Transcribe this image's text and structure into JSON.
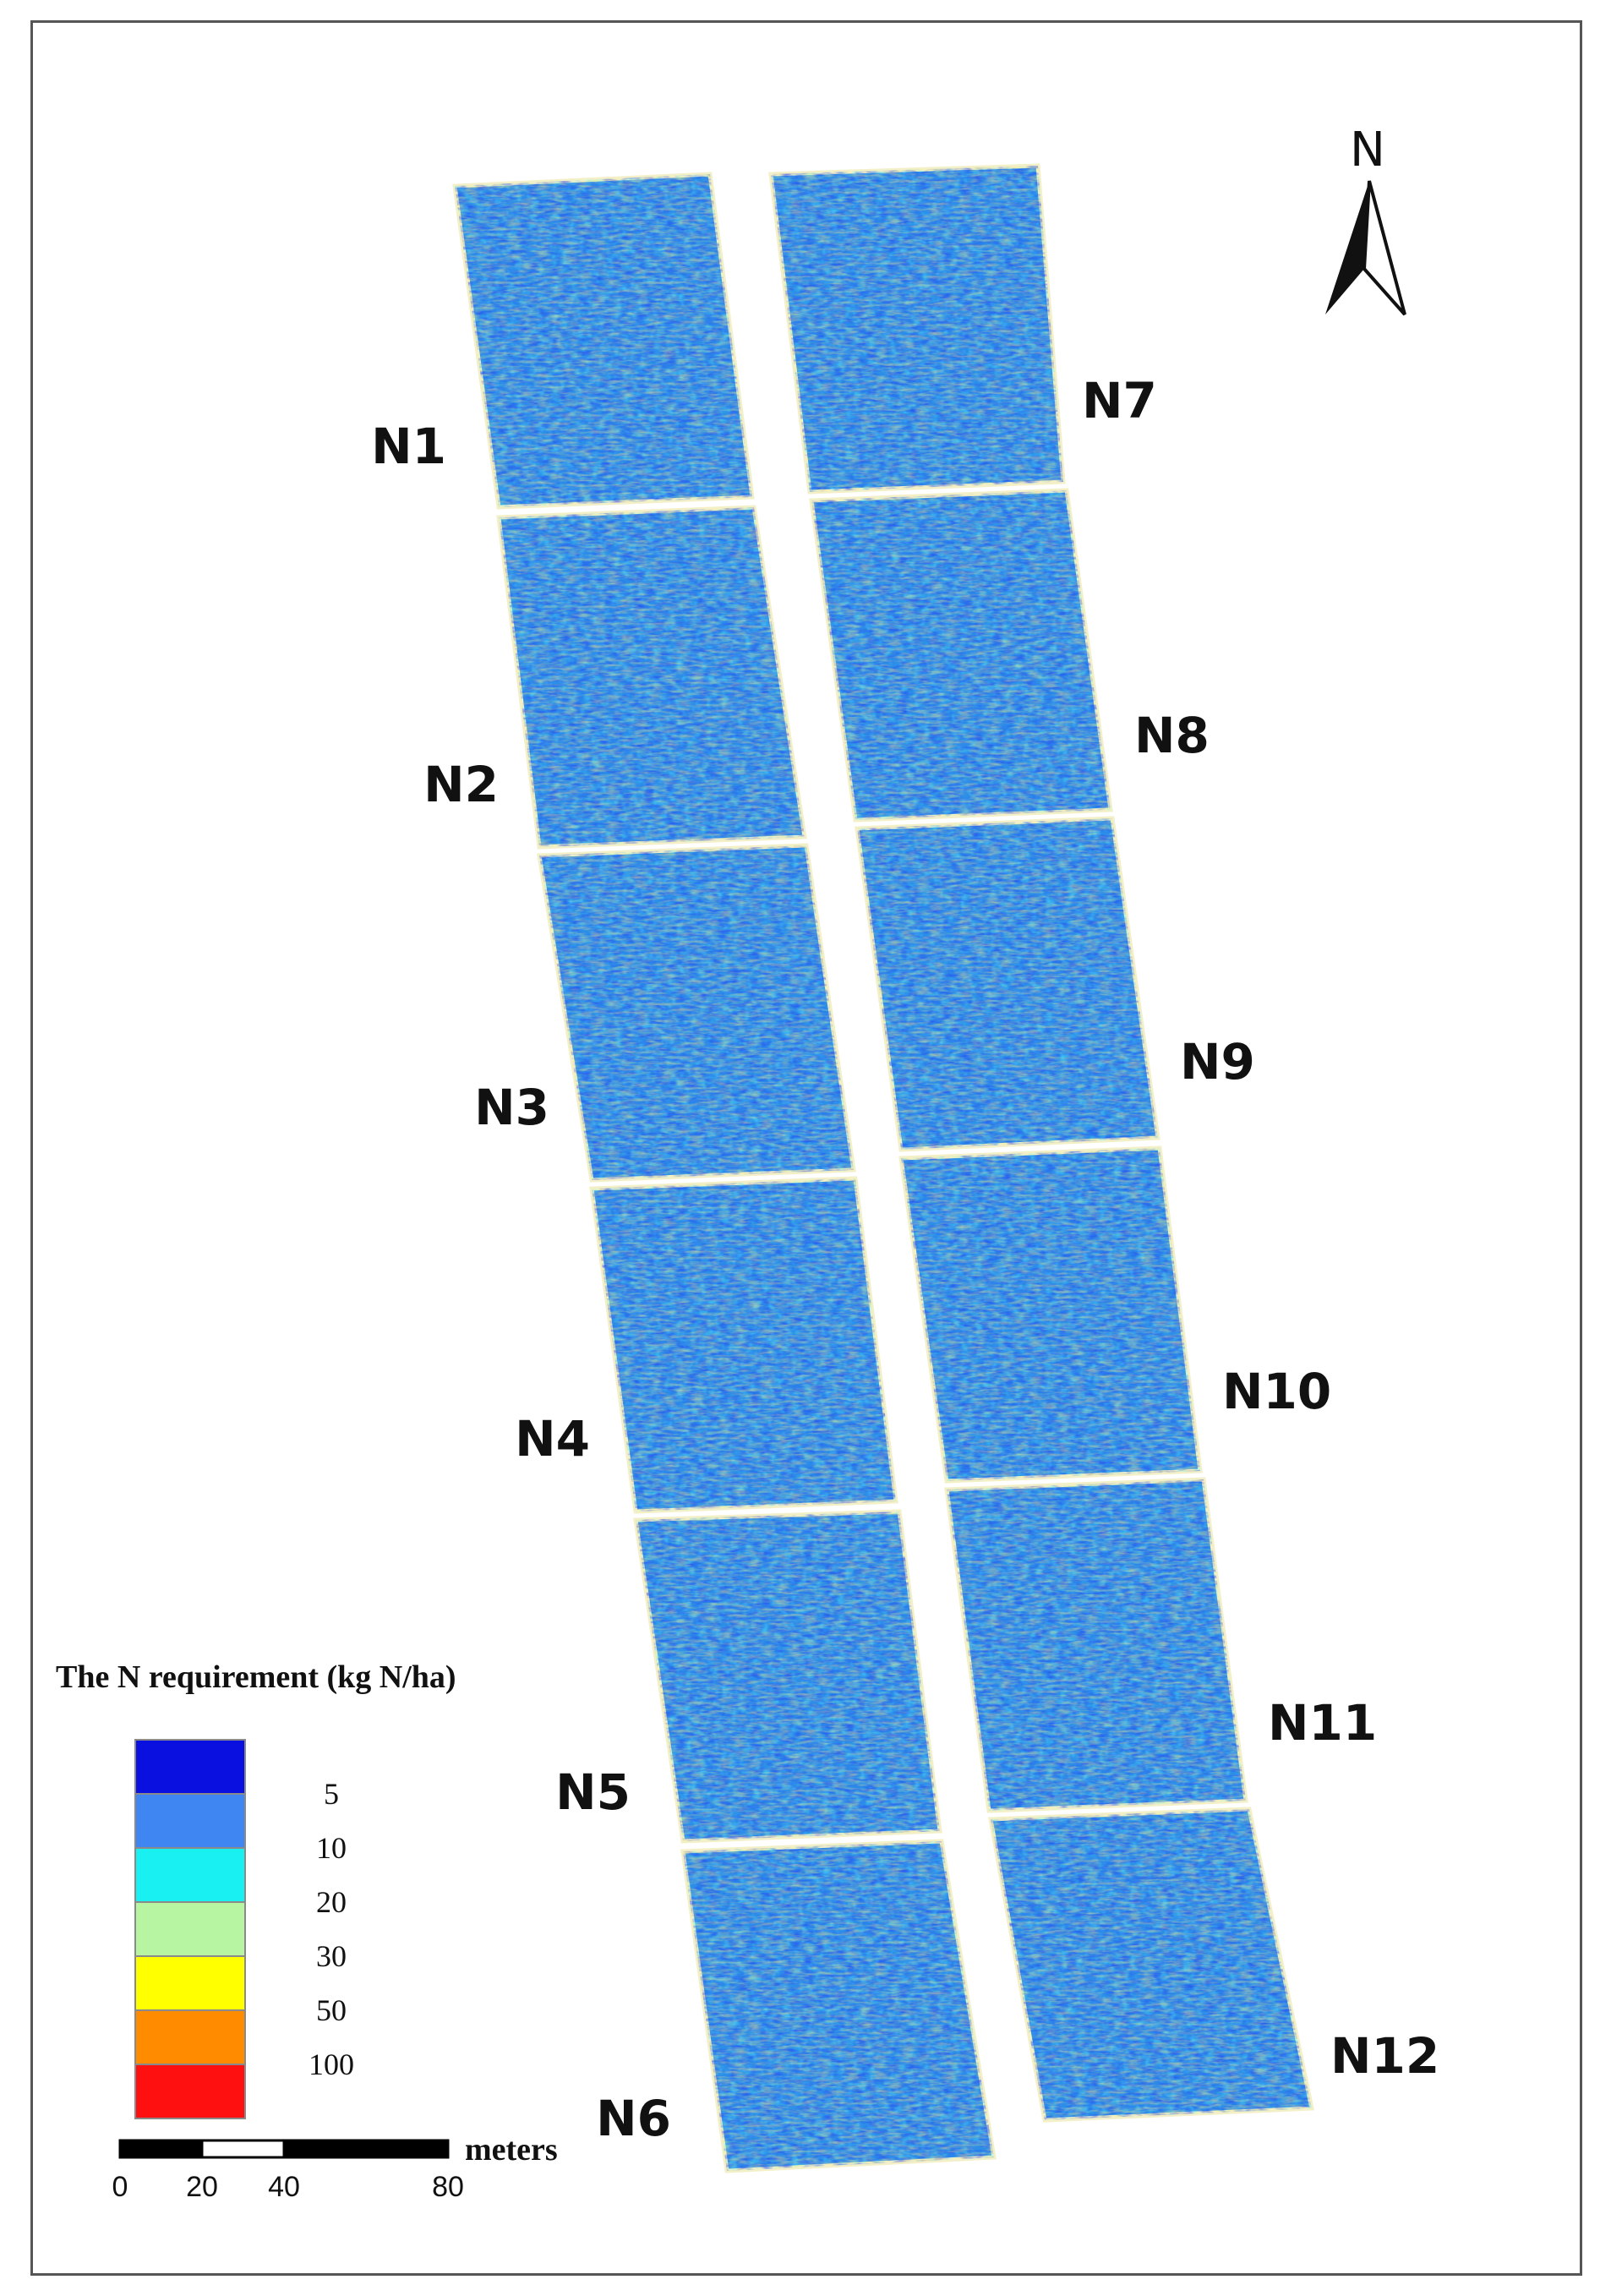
{
  "north_arrow": {
    "letter": "N",
    "icon": "north-arrow-icon"
  },
  "plots": [
    "N1",
    "N2",
    "N3",
    "N4",
    "N5",
    "N6",
    "N7",
    "N8",
    "N9",
    "N10",
    "N11",
    "N12"
  ],
  "legend": {
    "title": "The N requirement (kg N/ha)",
    "classes": [
      {
        "color": "#0a10e0"
      },
      {
        "color": "#3f86f2"
      },
      {
        "color": "#18f0f2"
      },
      {
        "color": "#b8f5a2"
      },
      {
        "color": "#ffff00"
      },
      {
        "color": "#ff8c00"
      },
      {
        "color": "#ff1010"
      }
    ],
    "break_labels": [
      "5",
      "10",
      "20",
      "30",
      "50",
      "100"
    ]
  },
  "scale_bar": {
    "unit": "meters",
    "ticks": [
      "0",
      "20",
      "40",
      "80"
    ],
    "segments": [
      {
        "from": 0,
        "to": 20,
        "fill": "#000000"
      },
      {
        "from": 20,
        "to": 40,
        "fill": "#ffffff"
      },
      {
        "from": 40,
        "to": 80,
        "fill": "#000000"
      }
    ]
  },
  "palette": {
    "field_base": "#2d8ee8",
    "field_texture": [
      "#0a10e0",
      "#3f86f2",
      "#18f0f2",
      "#b8f5a2",
      "#e8e070",
      "#ff8c00"
    ]
  }
}
